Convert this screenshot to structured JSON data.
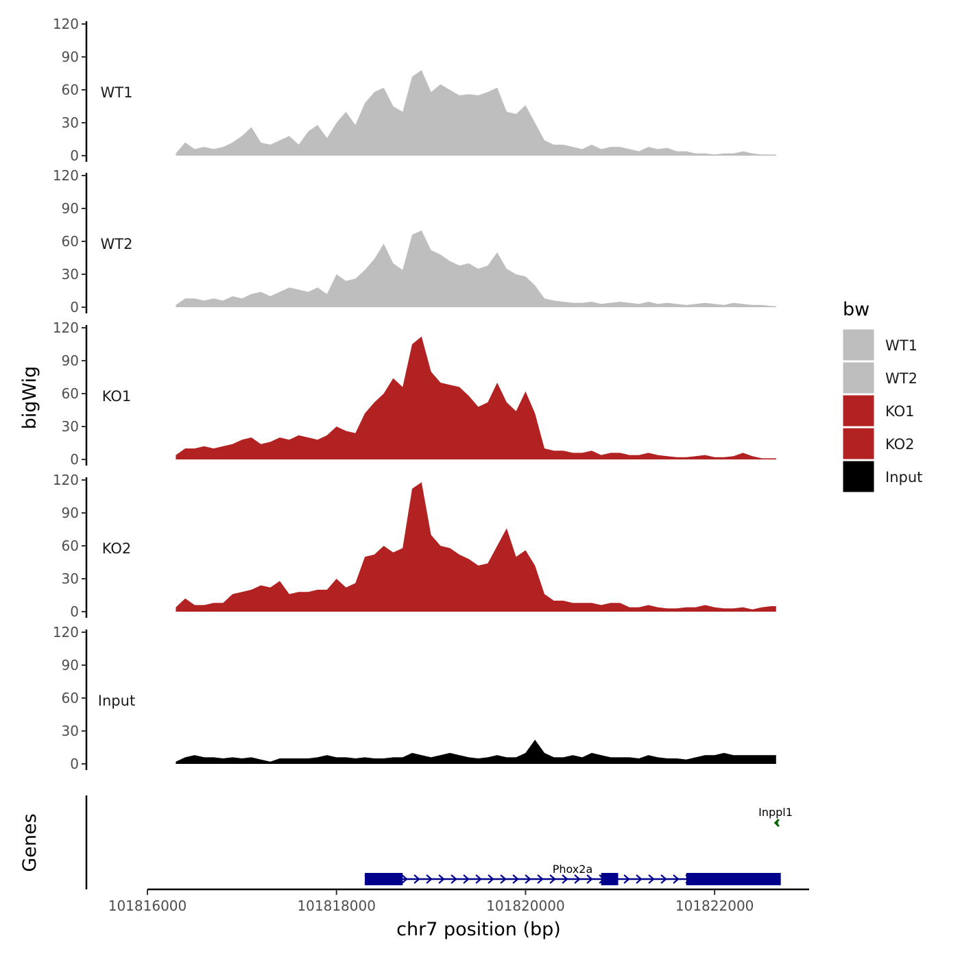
{
  "chart_data": {
    "type": "area",
    "subtype": "genome-coverage-tracks",
    "xlabel": "chr7 position (bp)",
    "ylabel": "bigWig",
    "genes_panel_label": "Genes",
    "xlim": [
      101816000,
      101823000
    ],
    "x_ticks": [
      101816000,
      101818000,
      101820000,
      101822000
    ],
    "ylim": [
      0,
      120
    ],
    "y_ticks": [
      0,
      30,
      60,
      90,
      120
    ],
    "legend": {
      "title": "bw",
      "entries": [
        {
          "label": "WT1",
          "color": "#BEBEBE"
        },
        {
          "label": "WT2",
          "color": "#BEBEBE"
        },
        {
          "label": "KO1",
          "color": "#B22222"
        },
        {
          "label": "KO2",
          "color": "#B22222"
        },
        {
          "label": "Input",
          "color": "#000000"
        }
      ]
    },
    "x": [
      101816300,
      101816400,
      101816500,
      101816600,
      101816700,
      101816800,
      101816900,
      101817000,
      101817100,
      101817200,
      101817300,
      101817400,
      101817500,
      101817600,
      101817700,
      101817800,
      101817900,
      101818000,
      101818100,
      101818200,
      101818300,
      101818400,
      101818500,
      101818600,
      101818700,
      101818800,
      101818900,
      101819000,
      101819100,
      101819200,
      101819300,
      101819400,
      101819500,
      101819600,
      101819700,
      101819800,
      101819900,
      101820000,
      101820100,
      101820200,
      101820300,
      101820400,
      101820500,
      101820600,
      101820700,
      101820800,
      101820900,
      101821000,
      101821100,
      101821200,
      101821300,
      101821400,
      101821500,
      101821600,
      101821700,
      101821800,
      101821900,
      101822000,
      101822100,
      101822200,
      101822300,
      101822400,
      101822500,
      101822600,
      101822650
    ],
    "series": [
      {
        "name": "WT1",
        "color": "#BEBEBE",
        "values": [
          2,
          12,
          6,
          8,
          6,
          8,
          12,
          18,
          26,
          12,
          10,
          14,
          18,
          10,
          22,
          28,
          16,
          30,
          40,
          28,
          48,
          58,
          62,
          45,
          40,
          72,
          78,
          58,
          65,
          60,
          55,
          56,
          55,
          58,
          62,
          40,
          38,
          46,
          30,
          14,
          10,
          10,
          8,
          6,
          10,
          6,
          8,
          8,
          6,
          4,
          8,
          6,
          7,
          4,
          4,
          2,
          2,
          1,
          2,
          2,
          4,
          2,
          1,
          1,
          1
        ]
      },
      {
        "name": "WT2",
        "color": "#BEBEBE",
        "values": [
          2,
          8,
          8,
          6,
          8,
          6,
          10,
          8,
          12,
          14,
          10,
          14,
          18,
          16,
          14,
          18,
          12,
          30,
          24,
          26,
          34,
          44,
          58,
          40,
          34,
          66,
          70,
          52,
          48,
          42,
          38,
          40,
          35,
          38,
          50,
          35,
          30,
          28,
          20,
          8,
          6,
          5,
          4,
          4,
          5,
          3,
          4,
          5,
          4,
          3,
          5,
          3,
          4,
          3,
          2,
          3,
          4,
          3,
          2,
          4,
          3,
          2,
          2,
          1,
          1
        ]
      },
      {
        "name": "KO1",
        "color": "#B22222",
        "values": [
          4,
          10,
          10,
          12,
          10,
          12,
          14,
          18,
          20,
          14,
          16,
          20,
          18,
          22,
          20,
          18,
          22,
          30,
          26,
          24,
          42,
          52,
          60,
          74,
          66,
          105,
          112,
          80,
          70,
          68,
          66,
          58,
          48,
          52,
          70,
          52,
          44,
          62,
          42,
          10,
          8,
          8,
          6,
          6,
          8,
          4,
          6,
          6,
          4,
          4,
          6,
          4,
          3,
          2,
          2,
          3,
          4,
          2,
          2,
          3,
          6,
          3,
          1,
          1,
          1
        ]
      },
      {
        "name": "KO2",
        "color": "#B22222",
        "values": [
          4,
          12,
          6,
          6,
          8,
          8,
          16,
          18,
          20,
          24,
          22,
          28,
          16,
          18,
          18,
          20,
          20,
          30,
          22,
          26,
          50,
          52,
          60,
          54,
          58,
          112,
          118,
          70,
          60,
          58,
          52,
          48,
          42,
          44,
          60,
          76,
          50,
          56,
          42,
          16,
          10,
          10,
          8,
          8,
          8,
          6,
          8,
          8,
          4,
          4,
          6,
          4,
          3,
          3,
          4,
          4,
          6,
          4,
          3,
          3,
          4,
          2,
          4,
          5,
          5
        ]
      },
      {
        "name": "Input",
        "color": "#000000",
        "values": [
          2,
          6,
          8,
          6,
          6,
          5,
          6,
          5,
          6,
          4,
          2,
          5,
          5,
          5,
          5,
          6,
          8,
          6,
          6,
          5,
          6,
          5,
          5,
          6,
          6,
          10,
          8,
          6,
          8,
          10,
          8,
          6,
          5,
          6,
          8,
          6,
          6,
          10,
          22,
          10,
          6,
          6,
          8,
          6,
          10,
          8,
          6,
          6,
          6,
          5,
          8,
          6,
          5,
          5,
          4,
          6,
          8,
          8,
          10,
          8,
          8,
          8,
          8,
          8,
          8
        ]
      }
    ],
    "genes": [
      {
        "name": "Phox2a",
        "strand": "+",
        "color": "#00008B",
        "start": 101818300,
        "end": 101822700,
        "exons": [
          [
            101818300,
            101818700
          ],
          [
            101820800,
            101820980
          ],
          [
            101821700,
            101822700
          ]
        ]
      },
      {
        "name": "Inppl1",
        "strand": "-",
        "color": "#006400",
        "start": 101822600,
        "end": 101822700,
        "exons": []
      }
    ]
  }
}
